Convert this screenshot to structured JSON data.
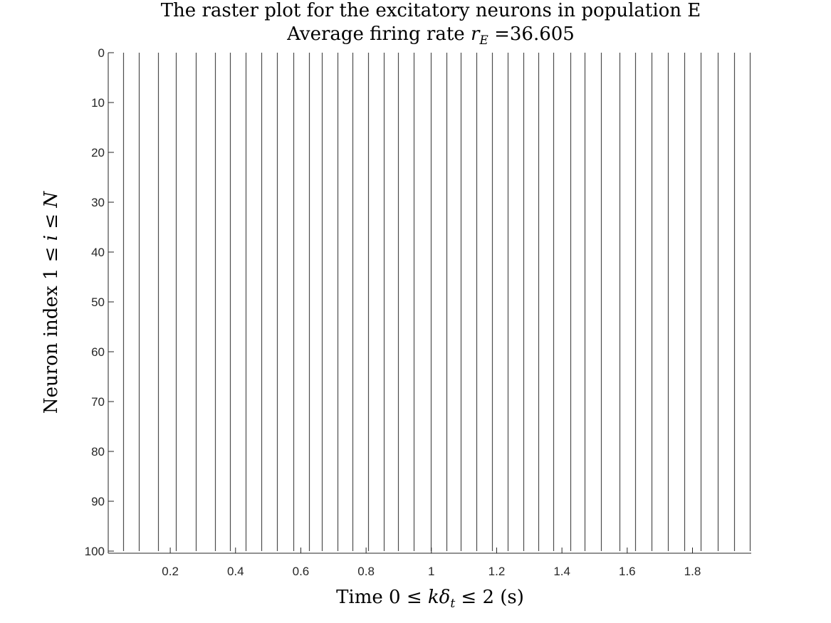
{
  "chart_data": {
    "type": "raster",
    "title": "The raster plot for the excitatory neurons in population E",
    "subtitle_prefix": "Average firing rate ",
    "subtitle_var": "r",
    "subtitle_var_sub": "E",
    "subtitle_suffix": " =36.605",
    "xlabel_prefix": "Time 0 ≤ ",
    "xlabel_var": "kδ",
    "xlabel_var_sub": "t",
    "xlabel_suffix": " ≤ 2 (s)",
    "ylabel_prefix": "Neuron index 1 ≤ ",
    "ylabel_var": "i",
    "ylabel_middle": " ≤ ",
    "ylabel_var2": "N",
    "xlim": [
      0.01,
      1.98
    ],
    "ylim": [
      0,
      100
    ],
    "y_reversed": true,
    "x_ticks": [
      0.2,
      0.4,
      0.6,
      0.8,
      1,
      1.2,
      1.4,
      1.6,
      1.8
    ],
    "x_tick_labels": [
      "0.2",
      "0.4",
      "0.6",
      "0.8",
      "1",
      "1.2",
      "1.4",
      "1.6",
      "1.8"
    ],
    "y_ticks": [
      0,
      10,
      20,
      30,
      40,
      50,
      60,
      70,
      80,
      90,
      100
    ],
    "y_tick_labels": [
      "0",
      "10",
      "20",
      "30",
      "40",
      "50",
      "60",
      "70",
      "80",
      "90",
      "100"
    ],
    "grid": false,
    "spike_color": "#4d4d4d",
    "axis_color": "#262626",
    "spike_times": [
      0.055,
      0.104,
      0.163,
      0.218,
      0.279,
      0.337,
      0.383,
      0.43,
      0.479,
      0.528,
      0.577,
      0.626,
      0.664,
      0.712,
      0.759,
      0.806,
      0.854,
      0.899,
      0.945,
      0.998,
      1.047,
      1.089,
      1.138,
      1.186,
      1.234,
      1.281,
      1.327,
      1.374,
      1.425,
      1.469,
      1.519,
      1.576,
      1.624,
      1.674,
      1.724,
      1.775,
      1.826,
      1.877,
      1.928,
      1.975
    ],
    "spike_neuron_range": [
      0,
      100
    ]
  }
}
